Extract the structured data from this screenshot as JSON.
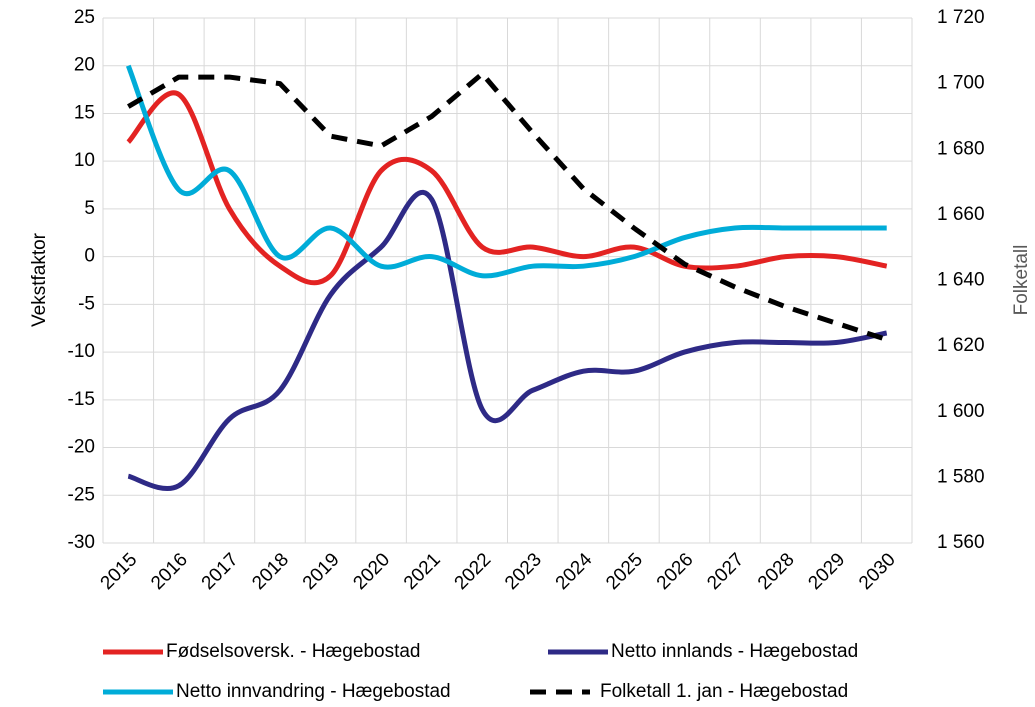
{
  "chart_data": {
    "type": "line",
    "categories": [
      "2015",
      "2016",
      "2017",
      "2018",
      "2019",
      "2020",
      "2021",
      "2022",
      "2023",
      "2024",
      "2025",
      "2026",
      "2027",
      "2028",
      "2029",
      "2030"
    ],
    "y_label": "Vekstfaktor",
    "y2_label": "Folketall",
    "ylim": [
      -30,
      25
    ],
    "yticks": [
      -30,
      -25,
      -20,
      -15,
      -10,
      -5,
      0,
      5,
      10,
      15,
      20,
      25
    ],
    "y2lim": [
      1560,
      1720
    ],
    "y2ticks": [
      {
        "value": 1560,
        "label": "1 560"
      },
      {
        "value": 1580,
        "label": "1 580"
      },
      {
        "value": 1600,
        "label": "1 600"
      },
      {
        "value": 1620,
        "label": "1 620"
      },
      {
        "value": 1640,
        "label": "1 640"
      },
      {
        "value": 1660,
        "label": "1 660"
      },
      {
        "value": 1680,
        "label": "1 680"
      },
      {
        "value": 1700,
        "label": "1 700"
      },
      {
        "value": 1720,
        "label": "1 720"
      }
    ],
    "grid": true,
    "series": [
      {
        "name": "Fødselsoversk. - Hægebostad",
        "color": "#e32322",
        "values": [
          12,
          17,
          5,
          -1,
          -2,
          9,
          9,
          1,
          1,
          0,
          1,
          -1,
          -1,
          0,
          0,
          -1
        ]
      },
      {
        "name": "Netto innlands - Hægebostad",
        "color": "#2e2a86",
        "values": [
          -23,
          -24,
          -17,
          -14,
          -4,
          1,
          6,
          -16,
          -14,
          -12,
          -12,
          -10,
          -9,
          -9,
          -9,
          -8
        ]
      },
      {
        "name": "Netto innvandring - Hægebostad",
        "color": "#00acd8",
        "values": [
          20,
          7,
          9,
          0,
          3,
          -1,
          0,
          -2,
          -1,
          -1,
          0,
          2,
          3,
          3,
          3,
          3
        ]
      },
      {
        "name": "Folketall 1. jan - Hægebostad",
        "color": "#000000",
        "axis": "y2",
        "dash": true,
        "values": [
          1693,
          1702,
          1702,
          1700,
          1684,
          1681,
          1690,
          1703,
          1685,
          1668,
          1656,
          1645,
          1638,
          1632,
          1627,
          1622
        ]
      }
    ]
  }
}
